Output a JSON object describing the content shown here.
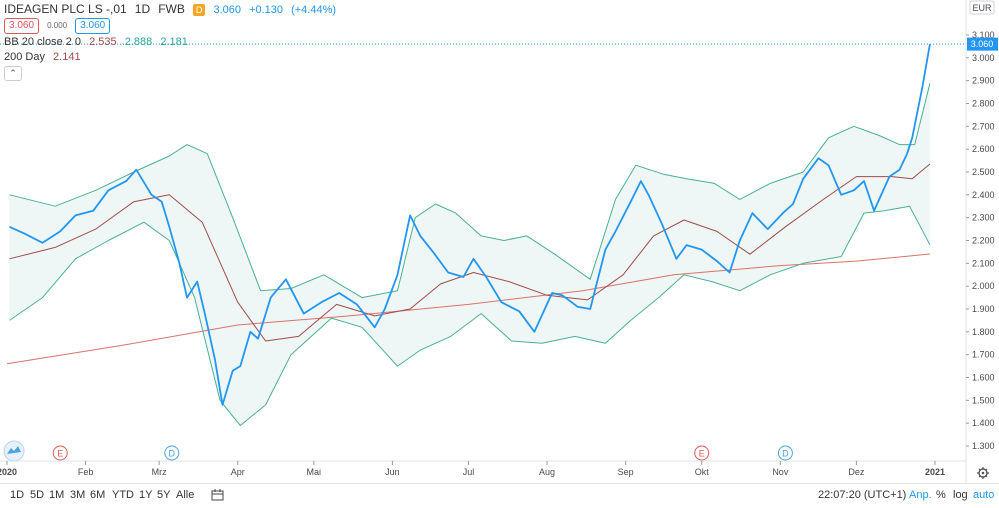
{
  "header": {
    "symbol": "IDEAGEN PLC LS -,01",
    "interval": "1D",
    "exchange": "FWB",
    "bid": "3.060",
    "spread": "0.000",
    "ask": "3.060",
    "d_tag": "D",
    "last": "3.060",
    "change": "+0.130",
    "change_pct": "(+4.44%)"
  },
  "indicators": {
    "bb": {
      "label": "BB 20 close 2 0",
      "v1": "2.535",
      "v2": "2.888",
      "v3": "2.181"
    },
    "ma": {
      "label": "200 Day",
      "value": "2.141"
    },
    "collapse_icon": "chevron-up-icon"
  },
  "axis": {
    "currency": "EUR",
    "price_tag": "3.060",
    "ticks": [
      "3.100",
      "3.000",
      "2.900",
      "2.800",
      "2.700",
      "2.600",
      "2.500",
      "2.400",
      "2.300",
      "2.200",
      "2.100",
      "2.000",
      "1.900",
      "1.800",
      "1.700",
      "1.600",
      "1.500",
      "1.400",
      "1.300"
    ],
    "xticks": [
      "2020",
      "Feb",
      "Mrz",
      "Apr",
      "Mai",
      "Jun",
      "Jul",
      "Aug",
      "Sep",
      "Okt",
      "Nov",
      "Dez",
      "2021"
    ]
  },
  "markers": [
    {
      "type": "E",
      "color": "#e0585b",
      "date": "Jan 2020"
    },
    {
      "type": "D",
      "color": "#4aa3df",
      "date": "Mrz 2020"
    },
    {
      "type": "E",
      "color": "#e0585b",
      "date": "Okt 2020"
    },
    {
      "type": "D",
      "color": "#4aa3df",
      "date": "Nov 2020"
    }
  ],
  "toolbar": {
    "timeframes": [
      "1D",
      "5D",
      "1M",
      "3M",
      "6M",
      "YTD",
      "1Y",
      "5Y",
      "Alle"
    ],
    "compare_icon": "calendar-range-icon",
    "time": "22:07:20 (UTC+1)",
    "adj": "Anp.",
    "pct": "%",
    "log": "log",
    "auto": "auto",
    "settings_icon": "gear-icon"
  },
  "colors": {
    "price": "#2196f3",
    "bb_band": "#4caf95",
    "bb_fill": "#eef7f5",
    "bb_basis": "#a04c4c",
    "ma200": "#d9736a",
    "up": "#2196f3",
    "down": "#e0585b"
  },
  "chart_data": {
    "type": "line",
    "title": "IDEAGEN PLC LS -,01 · 1D · FWB",
    "x_range": [
      "2020-01-01",
      "2021-01-01"
    ],
    "ylim": [
      1.23,
      3.14
    ],
    "y_unit": "EUR",
    "series": [
      {
        "name": "IDEAGEN PLC LS -,01",
        "role": "price",
        "values": [
          [
            "2020-01-02",
            2.26
          ],
          [
            "2020-01-08",
            2.23
          ],
          [
            "2020-01-15",
            2.19
          ],
          [
            "2020-01-22",
            2.24
          ],
          [
            "2020-01-28",
            2.31
          ],
          [
            "2020-02-04",
            2.33
          ],
          [
            "2020-02-10",
            2.42
          ],
          [
            "2020-02-17",
            2.46
          ],
          [
            "2020-02-21",
            2.51
          ],
          [
            "2020-02-27",
            2.4
          ],
          [
            "2020-03-02",
            2.37
          ],
          [
            "2020-03-05",
            2.26
          ],
          [
            "2020-03-09",
            2.1
          ],
          [
            "2020-03-12",
            1.95
          ],
          [
            "2020-03-16",
            2.02
          ],
          [
            "2020-03-19",
            1.88
          ],
          [
            "2020-03-23",
            1.68
          ],
          [
            "2020-03-26",
            1.48
          ],
          [
            "2020-03-30",
            1.63
          ],
          [
            "2020-04-02",
            1.65
          ],
          [
            "2020-04-06",
            1.8
          ],
          [
            "2020-04-09",
            1.77
          ],
          [
            "2020-04-14",
            1.95
          ],
          [
            "2020-04-20",
            2.03
          ],
          [
            "2020-04-27",
            1.88
          ],
          [
            "2020-05-04",
            1.93
          ],
          [
            "2020-05-11",
            1.97
          ],
          [
            "2020-05-18",
            1.92
          ],
          [
            "2020-05-25",
            1.82
          ],
          [
            "2020-05-29",
            1.9
          ],
          [
            "2020-06-03",
            2.05
          ],
          [
            "2020-06-08",
            2.31
          ],
          [
            "2020-06-12",
            2.22
          ],
          [
            "2020-06-17",
            2.15
          ],
          [
            "2020-06-23",
            2.06
          ],
          [
            "2020-06-29",
            2.04
          ],
          [
            "2020-07-03",
            2.12
          ],
          [
            "2020-07-08",
            2.04
          ],
          [
            "2020-07-14",
            1.93
          ],
          [
            "2020-07-21",
            1.89
          ],
          [
            "2020-07-27",
            1.8
          ],
          [
            "2020-08-03",
            1.97
          ],
          [
            "2020-08-07",
            1.96
          ],
          [
            "2020-08-13",
            1.91
          ],
          [
            "2020-08-18",
            1.9
          ],
          [
            "2020-08-24",
            2.16
          ],
          [
            "2020-08-28",
            2.24
          ],
          [
            "2020-09-03",
            2.37
          ],
          [
            "2020-09-07",
            2.46
          ],
          [
            "2020-09-10",
            2.4
          ],
          [
            "2020-09-15",
            2.28
          ],
          [
            "2020-09-21",
            2.12
          ],
          [
            "2020-09-25",
            2.18
          ],
          [
            "2020-10-01",
            2.16
          ],
          [
            "2020-10-07",
            2.11
          ],
          [
            "2020-10-12",
            2.06
          ],
          [
            "2020-10-16",
            2.2
          ],
          [
            "2020-10-21",
            2.32
          ],
          [
            "2020-10-27",
            2.25
          ],
          [
            "2020-11-02",
            2.32
          ],
          [
            "2020-11-06",
            2.36
          ],
          [
            "2020-11-10",
            2.47
          ],
          [
            "2020-11-16",
            2.56
          ],
          [
            "2020-11-20",
            2.53
          ],
          [
            "2020-11-25",
            2.4
          ],
          [
            "2020-11-30",
            2.42
          ],
          [
            "2020-12-04",
            2.46
          ],
          [
            "2020-12-08",
            2.33
          ],
          [
            "2020-12-14",
            2.48
          ],
          [
            "2020-12-18",
            2.51
          ],
          [
            "2020-12-21",
            2.58
          ],
          [
            "2020-12-23",
            2.65
          ],
          [
            "2020-12-27",
            2.87
          ],
          [
            "2020-12-30",
            3.06
          ]
        ]
      },
      {
        "name": "BB upper",
        "role": "bb_upper",
        "values": [
          [
            "2020-01-02",
            2.4
          ],
          [
            "2020-01-20",
            2.35
          ],
          [
            "2020-02-05",
            2.42
          ],
          [
            "2020-02-20",
            2.5
          ],
          [
            "2020-03-05",
            2.57
          ],
          [
            "2020-03-12",
            2.62
          ],
          [
            "2020-03-20",
            2.58
          ],
          [
            "2020-03-30",
            2.3
          ],
          [
            "2020-04-10",
            1.98
          ],
          [
            "2020-04-22",
            1.99
          ],
          [
            "2020-05-05",
            2.05
          ],
          [
            "2020-05-20",
            1.95
          ],
          [
            "2020-06-03",
            1.98
          ],
          [
            "2020-06-10",
            2.3
          ],
          [
            "2020-06-18",
            2.36
          ],
          [
            "2020-06-26",
            2.32
          ],
          [
            "2020-07-06",
            2.22
          ],
          [
            "2020-07-15",
            2.2
          ],
          [
            "2020-07-24",
            2.22
          ],
          [
            "2020-08-04",
            2.14
          ],
          [
            "2020-08-18",
            2.03
          ],
          [
            "2020-08-28",
            2.38
          ],
          [
            "2020-09-05",
            2.53
          ],
          [
            "2020-09-16",
            2.49
          ],
          [
            "2020-09-25",
            2.47
          ],
          [
            "2020-10-06",
            2.45
          ],
          [
            "2020-10-16",
            2.38
          ],
          [
            "2020-10-28",
            2.45
          ],
          [
            "2020-11-10",
            2.5
          ],
          [
            "2020-11-20",
            2.65
          ],
          [
            "2020-11-30",
            2.7
          ],
          [
            "2020-12-10",
            2.66
          ],
          [
            "2020-12-18",
            2.62
          ],
          [
            "2020-12-24",
            2.62
          ],
          [
            "2020-12-30",
            2.888
          ]
        ]
      },
      {
        "name": "BB lower",
        "role": "bb_lower",
        "values": [
          [
            "2020-01-02",
            1.85
          ],
          [
            "2020-01-15",
            1.95
          ],
          [
            "2020-01-28",
            2.12
          ],
          [
            "2020-02-10",
            2.2
          ],
          [
            "2020-02-24",
            2.28
          ],
          [
            "2020-03-05",
            2.2
          ],
          [
            "2020-03-15",
            1.95
          ],
          [
            "2020-03-25",
            1.5
          ],
          [
            "2020-04-02",
            1.39
          ],
          [
            "2020-04-12",
            1.48
          ],
          [
            "2020-04-22",
            1.7
          ],
          [
            "2020-05-08",
            1.86
          ],
          [
            "2020-05-20",
            1.82
          ],
          [
            "2020-06-03",
            1.65
          ],
          [
            "2020-06-12",
            1.72
          ],
          [
            "2020-06-24",
            1.78
          ],
          [
            "2020-07-06",
            1.88
          ],
          [
            "2020-07-18",
            1.76
          ],
          [
            "2020-07-30",
            1.75
          ],
          [
            "2020-08-12",
            1.78
          ],
          [
            "2020-08-24",
            1.75
          ],
          [
            "2020-09-03",
            1.85
          ],
          [
            "2020-09-14",
            1.95
          ],
          [
            "2020-09-24",
            2.05
          ],
          [
            "2020-10-05",
            2.02
          ],
          [
            "2020-10-16",
            1.98
          ],
          [
            "2020-10-28",
            2.05
          ],
          [
            "2020-11-10",
            2.1
          ],
          [
            "2020-11-25",
            2.13
          ],
          [
            "2020-12-04",
            2.32
          ],
          [
            "2020-12-12",
            2.33
          ],
          [
            "2020-12-22",
            2.35
          ],
          [
            "2020-12-30",
            2.181
          ]
        ]
      },
      {
        "name": "BB basis",
        "role": "bb_basis",
        "values": [
          [
            "2020-01-02",
            2.12
          ],
          [
            "2020-01-20",
            2.17
          ],
          [
            "2020-02-05",
            2.25
          ],
          [
            "2020-02-20",
            2.37
          ],
          [
            "2020-03-05",
            2.4
          ],
          [
            "2020-03-18",
            2.28
          ],
          [
            "2020-04-01",
            1.93
          ],
          [
            "2020-04-12",
            1.76
          ],
          [
            "2020-04-25",
            1.78
          ],
          [
            "2020-05-10",
            1.92
          ],
          [
            "2020-05-25",
            1.87
          ],
          [
            "2020-06-08",
            1.9
          ],
          [
            "2020-06-20",
            2.01
          ],
          [
            "2020-07-03",
            2.06
          ],
          [
            "2020-07-17",
            2.02
          ],
          [
            "2020-08-01",
            1.96
          ],
          [
            "2020-08-17",
            1.94
          ],
          [
            "2020-08-31",
            2.05
          ],
          [
            "2020-09-12",
            2.22
          ],
          [
            "2020-09-24",
            2.29
          ],
          [
            "2020-10-07",
            2.24
          ],
          [
            "2020-10-20",
            2.14
          ],
          [
            "2020-11-03",
            2.26
          ],
          [
            "2020-11-18",
            2.38
          ],
          [
            "2020-12-01",
            2.48
          ],
          [
            "2020-12-15",
            2.48
          ],
          [
            "2020-12-23",
            2.47
          ],
          [
            "2020-12-30",
            2.535
          ]
        ]
      },
      {
        "name": "200 Day",
        "role": "ma200",
        "values": [
          [
            "2020-01-01",
            1.66
          ],
          [
            "2020-02-15",
            1.74
          ],
          [
            "2020-04-01",
            1.83
          ],
          [
            "2020-05-15",
            1.87
          ],
          [
            "2020-07-01",
            1.92
          ],
          [
            "2020-08-15",
            1.98
          ],
          [
            "2020-09-20",
            2.05
          ],
          [
            "2020-11-01",
            2.09
          ],
          [
            "2020-12-01",
            2.11
          ],
          [
            "2020-12-30",
            2.141
          ]
        ]
      }
    ]
  }
}
